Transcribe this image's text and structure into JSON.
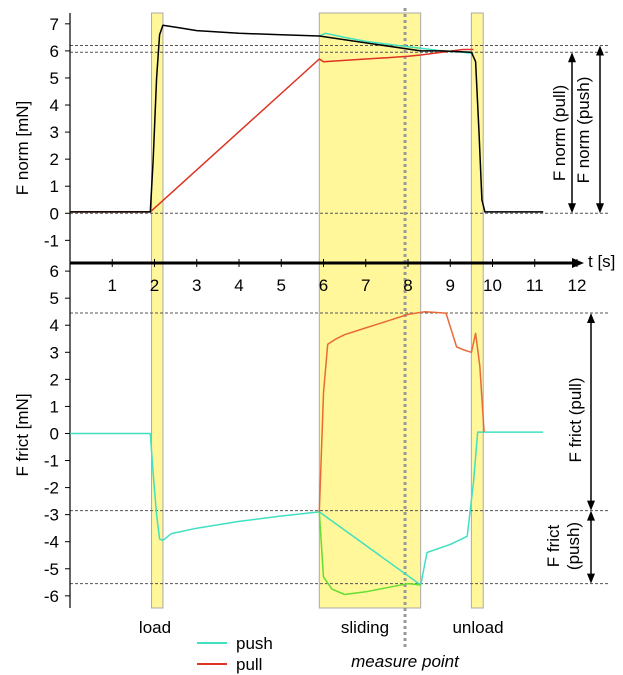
{
  "chart_data": [
    {
      "type": "line",
      "title": "",
      "xlabel": "t [s]",
      "ylabel": "F norm [mN]",
      "xlim": [
        0,
        12
      ],
      "ylim": [
        -1.8,
        7.4
      ],
      "x_ticks": [
        1,
        2,
        3,
        4,
        5,
        6,
        7,
        8,
        9,
        10,
        11,
        12
      ],
      "y_ticks": [
        -1,
        0,
        1,
        2,
        3,
        4,
        5,
        6,
        7
      ],
      "reference_lines": [
        0,
        5.95,
        6.2
      ],
      "shaded_regions": [
        [
          1.93,
          2.2
        ],
        [
          5.9,
          8.3
        ],
        [
          9.5,
          9.78
        ]
      ],
      "measure_point_x": 7.93,
      "series": [
        {
          "name": "push",
          "color": "#40e0c0",
          "x": [
            5.9,
            6.05,
            6.5,
            7.0,
            7.5,
            8.0,
            8.3,
            8.8,
            9.3,
            9.55
          ],
          "y": [
            6.55,
            6.65,
            6.5,
            6.35,
            6.25,
            6.15,
            6.1,
            6.0,
            5.95,
            5.9
          ]
        },
        {
          "name": "pull",
          "color": "#dd3322",
          "x": [
            0.0,
            1.9,
            5.9,
            6.0,
            6.5,
            7.0,
            7.5,
            8.0,
            8.3,
            8.8,
            9.3,
            9.55
          ],
          "y": [
            0.05,
            0.05,
            5.7,
            5.6,
            5.65,
            5.7,
            5.75,
            5.8,
            5.85,
            5.95,
            6.05,
            6.05
          ]
        },
        {
          "name": "",
          "color": "#000000",
          "x": [
            0.0,
            1.9,
            1.97,
            2.05,
            2.12,
            2.2,
            2.6,
            3.0,
            4.0,
            5.0,
            5.9,
            8.3,
            8.8,
            9.5,
            9.6,
            9.68,
            9.75,
            9.82,
            10.2,
            11.2
          ],
          "y": [
            0.05,
            0.05,
            2.0,
            5.0,
            6.6,
            6.95,
            6.85,
            6.75,
            6.65,
            6.6,
            6.55,
            6.0,
            6.0,
            5.95,
            5.6,
            3.0,
            0.5,
            0.05,
            0.05,
            0.05
          ]
        }
      ]
    },
    {
      "type": "line",
      "title": "",
      "xlabel": "t [s]",
      "ylabel": "F frict [mN]",
      "xlim": [
        0,
        12
      ],
      "ylim": [
        -6.45,
        6.3
      ],
      "y_ticks": [
        -6,
        -5,
        -4,
        -3,
        -2,
        -1,
        0,
        1,
        2,
        3,
        4,
        5,
        6
      ],
      "reference_lines": [
        4.45,
        -2.85,
        -5.55
      ],
      "shaded_regions": [
        [
          1.93,
          2.2
        ],
        [
          5.9,
          8.3
        ],
        [
          9.5,
          9.78
        ]
      ],
      "measure_point_x": 7.93,
      "series": [
        {
          "name": "push",
          "color": "#40e0c0",
          "x": [
            0.0,
            1.9,
            1.97,
            2.05,
            2.12,
            2.2,
            2.4,
            3.0,
            4.0,
            5.0,
            5.9,
            8.3,
            8.45,
            9.0,
            9.4,
            9.55,
            9.65,
            9.75,
            11.2
          ],
          "y": [
            0.0,
            0.0,
            -1.5,
            -3.0,
            -3.9,
            -3.95,
            -3.7,
            -3.5,
            -3.25,
            -3.05,
            -2.9,
            -5.6,
            -4.4,
            -4.1,
            -3.8,
            -1.8,
            0.05,
            0.05,
            0.05
          ]
        },
        {
          "name": "",
          "color": "#66dd33",
          "x": [
            5.9,
            6.0,
            6.2,
            6.5,
            7.0,
            7.5,
            8.0,
            8.3
          ],
          "y": [
            -2.9,
            -5.3,
            -5.75,
            -5.95,
            -5.85,
            -5.7,
            -5.55,
            -5.6
          ]
        },
        {
          "name": "pull",
          "color": "#e86a3a",
          "x": [
            5.9,
            6.0,
            6.1,
            6.3,
            6.5,
            7.0,
            7.5,
            8.0,
            8.4,
            8.9,
            9.15,
            9.3,
            9.5,
            9.6,
            9.7,
            9.8
          ],
          "y": [
            -2.9,
            1.5,
            3.3,
            3.5,
            3.65,
            3.9,
            4.15,
            4.4,
            4.5,
            4.45,
            3.2,
            3.1,
            3.0,
            3.7,
            2.5,
            0.05
          ]
        }
      ]
    }
  ],
  "annotations": {
    "norm_pull": "F norm (pull)",
    "norm_push": "F norm (push)",
    "frict_pull": "F frict (pull)",
    "frict_push_line1": "F frict",
    "frict_push_line2": "(push)",
    "load": "load",
    "sliding": "sliding",
    "unload": "unload",
    "measure_point": "measure point"
  },
  "legend": {
    "placement": "bottom-center",
    "items": [
      {
        "label": "push",
        "color": "#40e0c0"
      },
      {
        "label": "pull",
        "color": "#dd3322"
      }
    ]
  },
  "colors": {
    "shade_fill": "#fff799",
    "shade_edge": "#aaaaaa",
    "axis": "#000000",
    "ref_line": "#555555"
  }
}
